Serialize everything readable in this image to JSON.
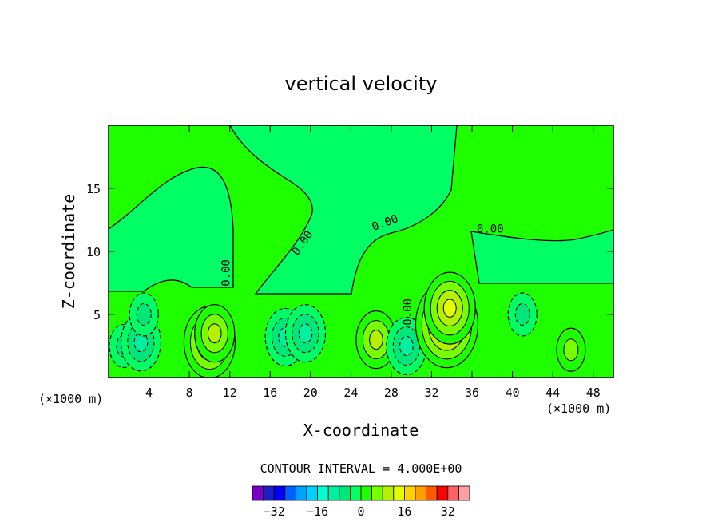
{
  "chart_data": {
    "type": "heatmap",
    "title": "vertical velocity",
    "xlabel": "X-coordinate",
    "ylabel": "Z-coordinate",
    "x_unit_left": "(×1000 m)",
    "x_unit_right": "(×1000 m)",
    "xlim": [
      0,
      50
    ],
    "ylim": [
      0,
      20
    ],
    "x_ticks": [
      "4",
      "8",
      "12",
      "16",
      "20",
      "24",
      "28",
      "32",
      "36",
      "40",
      "44",
      "48"
    ],
    "x_tick_values": [
      4,
      8,
      12,
      16,
      20,
      24,
      28,
      32,
      36,
      40,
      44,
      48
    ],
    "y_ticks": [
      "5",
      "10",
      "15"
    ],
    "y_tick_values": [
      5,
      10,
      15
    ],
    "contour_interval_text": "CONTOUR INTERVAL = 4.000E+00",
    "contour_interval": 4,
    "contour_labels": [
      {
        "text": "0.00",
        "x": 12.0,
        "z": 8.3,
        "angle": -90
      },
      {
        "text": "0.00",
        "x": 19.5,
        "z": 10.5,
        "angle": -55
      },
      {
        "text": "0.00",
        "x": 27.5,
        "z": 12.0,
        "angle": -20
      },
      {
        "text": "0.00",
        "x": 37.8,
        "z": 11.5,
        "angle": 0
      },
      {
        "text": "0.00",
        "x": 30.0,
        "z": 5.2,
        "angle": -90
      }
    ],
    "colorbar": {
      "tick_labels": [
        "−32",
        "−16",
        "0",
        "16",
        "32"
      ],
      "tick_values": [
        -32,
        -16,
        0,
        16,
        32
      ],
      "levels": [
        -36,
        -32,
        -28,
        -24,
        -20,
        -16,
        -12,
        -8,
        -4,
        0,
        4,
        8,
        12,
        16,
        20,
        24,
        28,
        32,
        36
      ],
      "colors": [
        "#7a00c8",
        "#1e1ec8",
        "#0000ff",
        "#0060ff",
        "#00a0ff",
        "#00d2ff",
        "#00ffd2",
        "#00f0a0",
        "#00e678",
        "#00ff64",
        "#1eff00",
        "#78ff00",
        "#b4f000",
        "#e6ff00",
        "#ffd200",
        "#ffa000",
        "#ff5a00",
        "#ff0000",
        "#ff6464",
        "#ffa0a0"
      ]
    },
    "cells": [
      {
        "x": 1.5,
        "z": 2.5,
        "w": -6
      },
      {
        "x": 3.2,
        "z": 2.8,
        "w": -9
      },
      {
        "x": 3.5,
        "z": 5.0,
        "w": -5
      },
      {
        "x": 10.0,
        "z": 2.8,
        "w": 14
      },
      {
        "x": 10.5,
        "z": 3.5,
        "w": 9
      },
      {
        "x": 17.5,
        "z": 3.2,
        "w": -10
      },
      {
        "x": 19.5,
        "z": 3.5,
        "w": -9
      },
      {
        "x": 26.5,
        "z": 3.0,
        "w": 11
      },
      {
        "x": 29.5,
        "z": 2.5,
        "w": -8
      },
      {
        "x": 33.5,
        "z": 4.2,
        "w": 17
      },
      {
        "x": 33.8,
        "z": 5.5,
        "w": 12
      },
      {
        "x": 41.0,
        "z": 5.0,
        "w": -4
      },
      {
        "x": 45.8,
        "z": 2.2,
        "w": 7
      }
    ]
  }
}
